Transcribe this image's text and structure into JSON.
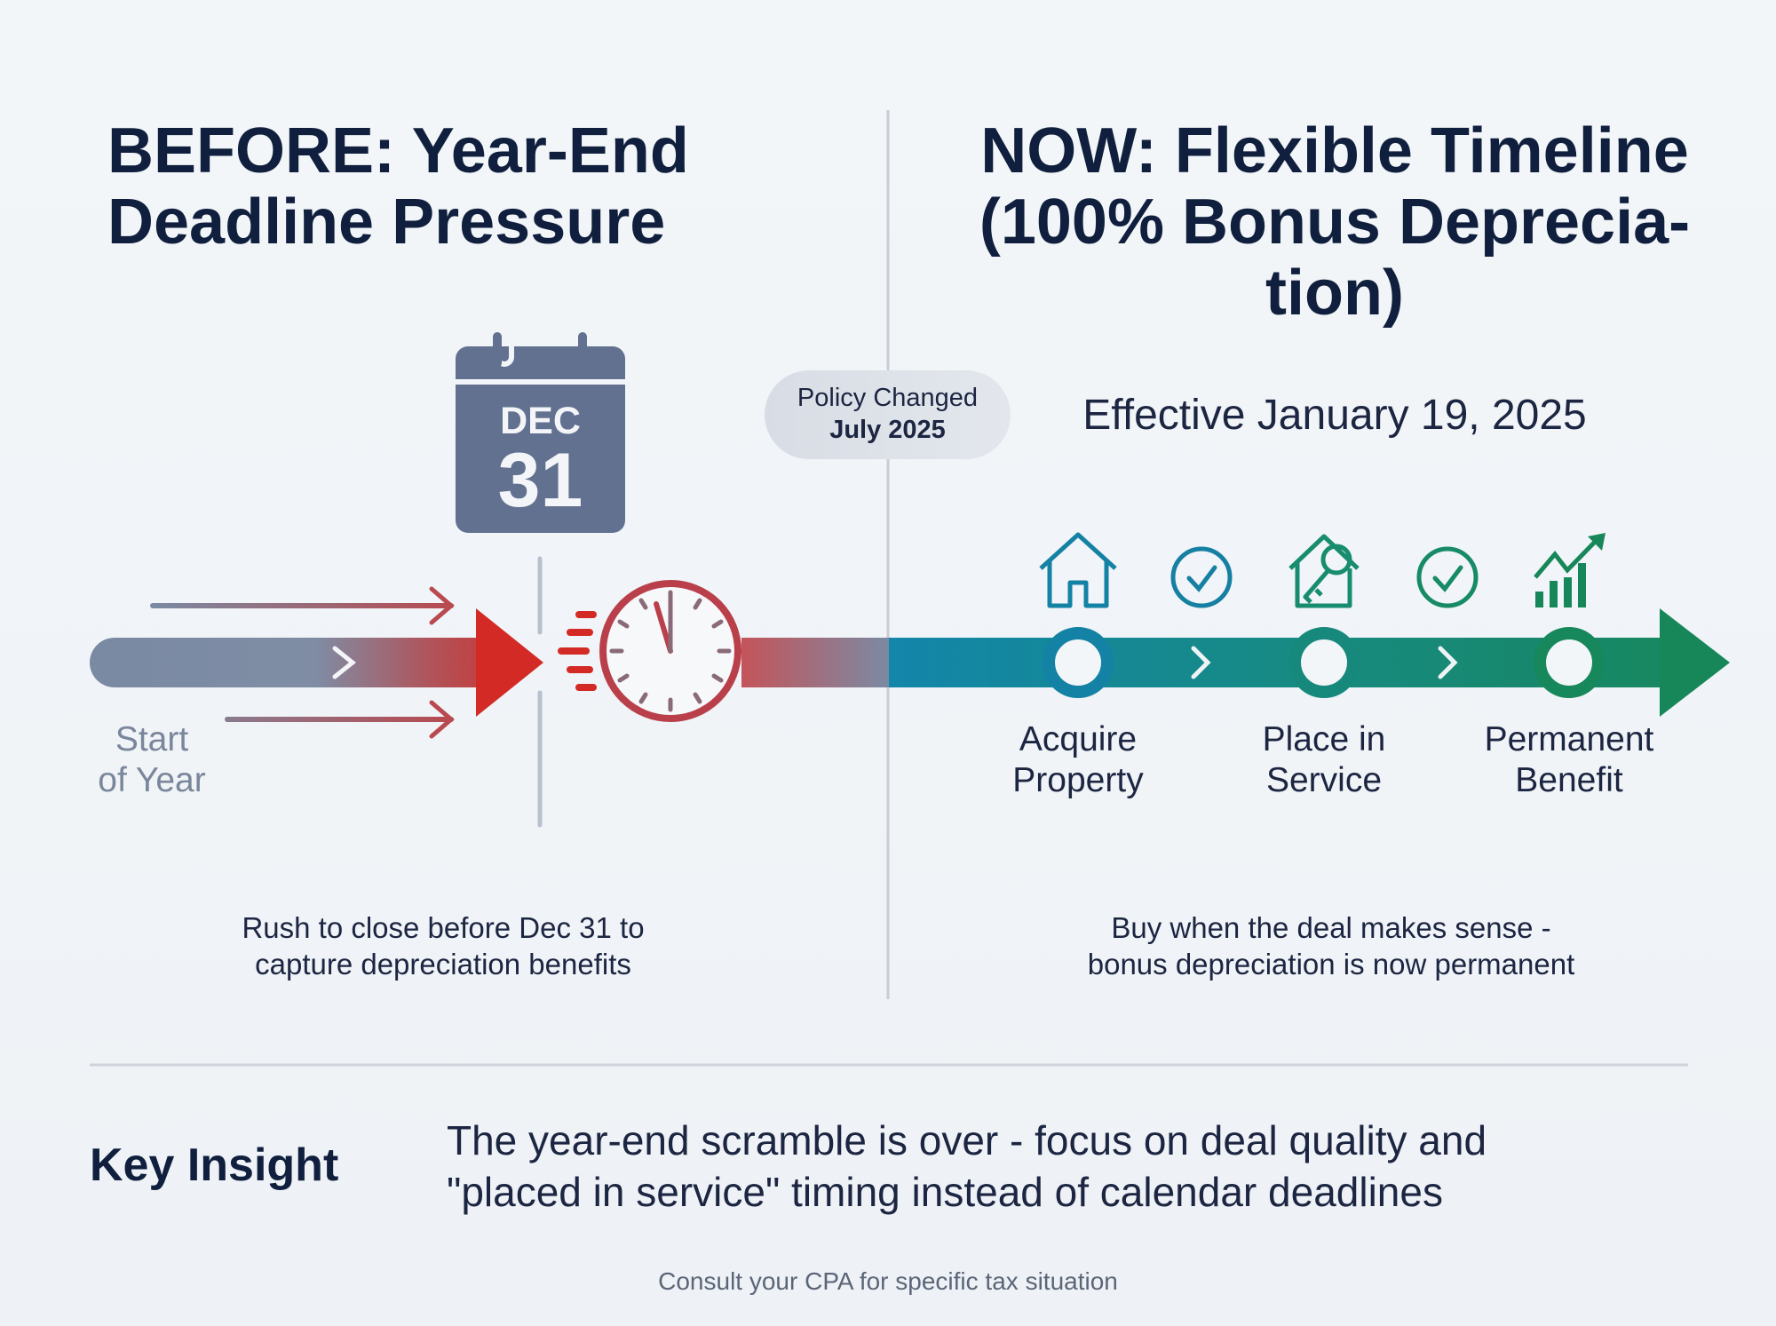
{
  "before": {
    "title_line1": "BEFORE: Year-End",
    "title_line2": "Deadline Pressure",
    "calendar_month": "DEC",
    "calendar_day": "31",
    "start_label_line1": "Start",
    "start_label_line2": "of Year",
    "caption_line1": "Rush to close before Dec 31 to",
    "caption_line2": "capture depreciation benefits"
  },
  "policy_badge": {
    "line1": "Policy Changed",
    "line2": "July 2025"
  },
  "now": {
    "title_line1": "NOW: Flexible Timeline",
    "title_line2": "(100% Bonus Deprecia-",
    "title_line3": "tion)",
    "effective": "Effective January 19, 2025",
    "steps": [
      {
        "line1": "Acquire",
        "line2": "Property",
        "icon": "house-icon"
      },
      {
        "line1": "Place in",
        "line2": "Service",
        "icon": "house-key-icon"
      },
      {
        "line1": "Permanent",
        "line2": "Benefit",
        "icon": "growth-chart-icon"
      }
    ],
    "caption_line1": "Buy when the deal makes sense -",
    "caption_line2": "bonus depreciation is now permanent"
  },
  "insight": {
    "label": "Key Insight",
    "line1": "The year-end scramble is over - focus on deal quality and",
    "line2": "\"placed in service\" timing instead of calendar deadlines"
  },
  "footer": "Consult your CPA for specific tax situation",
  "colors": {
    "navy": "#0f1f3d",
    "slate": "#61718f",
    "red": "#d42a25",
    "teal": "#1486a8",
    "green": "#16875a"
  }
}
